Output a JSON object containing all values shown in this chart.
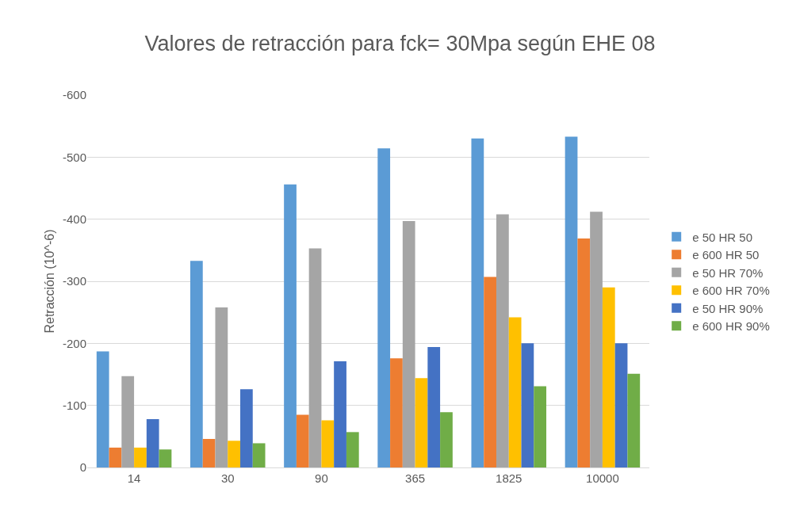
{
  "chart_data": {
    "type": "bar",
    "title": "Valores de retracción para fck= 30Mpa según EHE 08",
    "ylabel": "Retracción (10^-6)",
    "categories": [
      "14",
      "30",
      "90",
      "365",
      "1825",
      "10000"
    ],
    "series": [
      {
        "name": "e 50 HR 50",
        "color": "#5b9bd5",
        "values": [
          -187,
          -333,
          -456,
          -514,
          -530,
          -533
        ]
      },
      {
        "name": "e 600 HR 50",
        "color": "#ed7d31",
        "values": [
          -32,
          -46,
          -85,
          -176,
          -307,
          -369
        ]
      },
      {
        "name": "e 50 HR 70%",
        "color": "#a5a5a5",
        "values": [
          -147,
          -258,
          -353,
          -397,
          -408,
          -412
        ]
      },
      {
        "name": "e 600 HR 70%",
        "color": "#ffc000",
        "values": [
          -32,
          -43,
          -76,
          -144,
          -242,
          -290
        ]
      },
      {
        "name": "e 50 HR 90%",
        "color": "#4472c4",
        "values": [
          -78,
          -126,
          -171,
          -194,
          -200,
          -200
        ]
      },
      {
        "name": "e 600 HR 90%",
        "color": "#70ad47",
        "values": [
          -29,
          -39,
          -57,
          -89,
          -131,
          -151
        ]
      }
    ],
    "ylim": [
      0,
      -600
    ],
    "yticks": [
      0,
      -100,
      -200,
      -300,
      -400,
      -500,
      -600
    ],
    "grid": "y",
    "legend": "right"
  }
}
